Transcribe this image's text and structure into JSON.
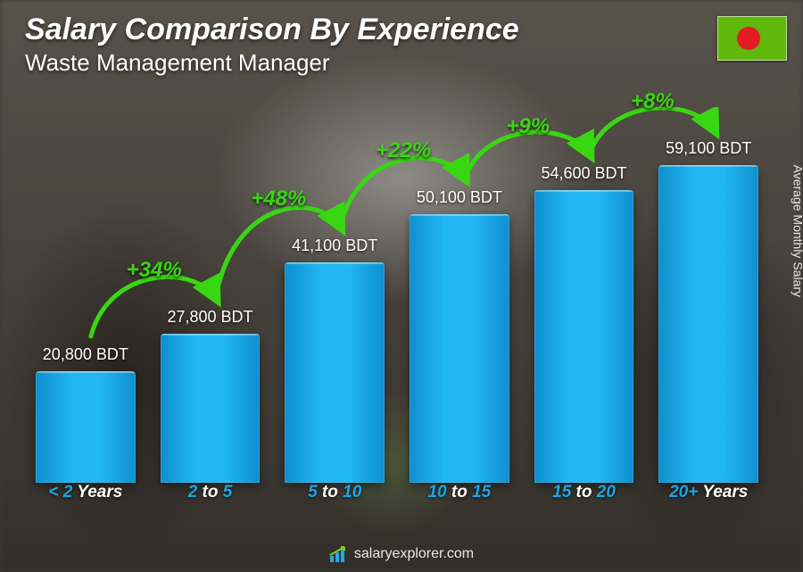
{
  "header": {
    "title": "Salary Comparison By Experience",
    "subtitle": "Waste Management Manager"
  },
  "flag": {
    "bg_color": "#5fb80a",
    "circle_color": "#e31b23"
  },
  "side_label": "Average Monthly Salary",
  "footer": {
    "site": "salaryexplorer.com",
    "logo_bar_color": "#1fa8e8",
    "logo_arrow_color": "#7fd11e"
  },
  "chart": {
    "type": "bar",
    "currency": "BDT",
    "background_color": "transparent",
    "bar_gradient": {
      "c1": "#22b6f2",
      "c2": "#0d8fcf"
    },
    "value_text_color": "#ffffff",
    "value_fontsize": 18,
    "xlabel_color_primary": "#1aa6e4",
    "xlabel_color_secondary": "#ffffff",
    "xlabel_fontsize": 19,
    "pct_color": "#39d612",
    "pct_fontsize": 24,
    "arrow_color": "#39d612",
    "max_value": 60000,
    "bars": [
      {
        "label_pre": "< 2",
        "label_post": "Years",
        "value": 20800,
        "value_label": "20,800 BDT"
      },
      {
        "label_pre": "2",
        "label_mid": "to",
        "label_post": "5",
        "value": 27800,
        "value_label": "27,800 BDT",
        "pct_from_prev": "+34%"
      },
      {
        "label_pre": "5",
        "label_mid": "to",
        "label_post": "10",
        "value": 41100,
        "value_label": "41,100 BDT",
        "pct_from_prev": "+48%"
      },
      {
        "label_pre": "10",
        "label_mid": "to",
        "label_post": "15",
        "value": 50100,
        "value_label": "50,100 BDT",
        "pct_from_prev": "+22%"
      },
      {
        "label_pre": "15",
        "label_mid": "to",
        "label_post": "20",
        "value": 54600,
        "value_label": "54,600 BDT",
        "pct_from_prev": "+9%"
      },
      {
        "label_pre": "20+",
        "label_post": "Years",
        "value": 59100,
        "value_label": "59,100 BDT",
        "pct_from_prev": "+8%"
      }
    ]
  }
}
